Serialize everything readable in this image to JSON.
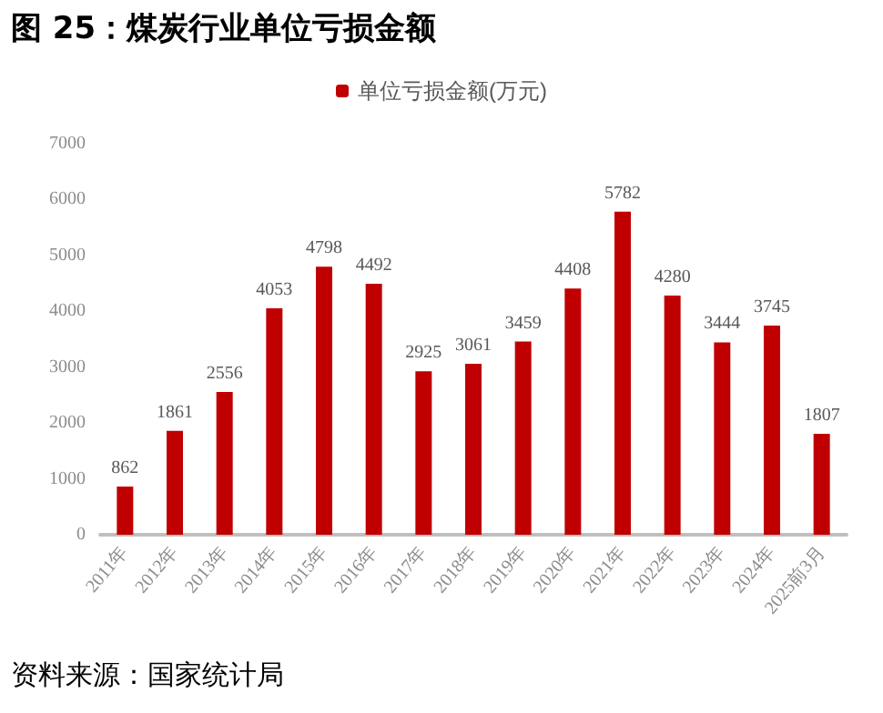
{
  "chart_data": {
    "type": "bar",
    "title": "图 25：煤炭行业单位亏损金额",
    "categories": [
      "2011年",
      "2012年",
      "2013年",
      "2014年",
      "2015年",
      "2016年",
      "2017年",
      "2018年",
      "2019年",
      "2020年",
      "2021年",
      "2022年",
      "2023年",
      "2024年",
      "2025前3月"
    ],
    "series": [
      {
        "name": "单位亏损金额(万元)",
        "color": "#c00000",
        "values": [
          862,
          1861,
          2556,
          4053,
          4798,
          4492,
          2925,
          3061,
          3459,
          4408,
          5782,
          4280,
          3444,
          3745,
          1807
        ]
      }
    ],
    "ylim": [
      0,
      7000
    ],
    "yticks": [
      0,
      1000,
      2000,
      3000,
      4000,
      5000,
      6000,
      7000
    ],
    "grid": false,
    "legend": "top",
    "data_labels": true,
    "annotations": [
      "资料来源：国家统计局"
    ]
  }
}
